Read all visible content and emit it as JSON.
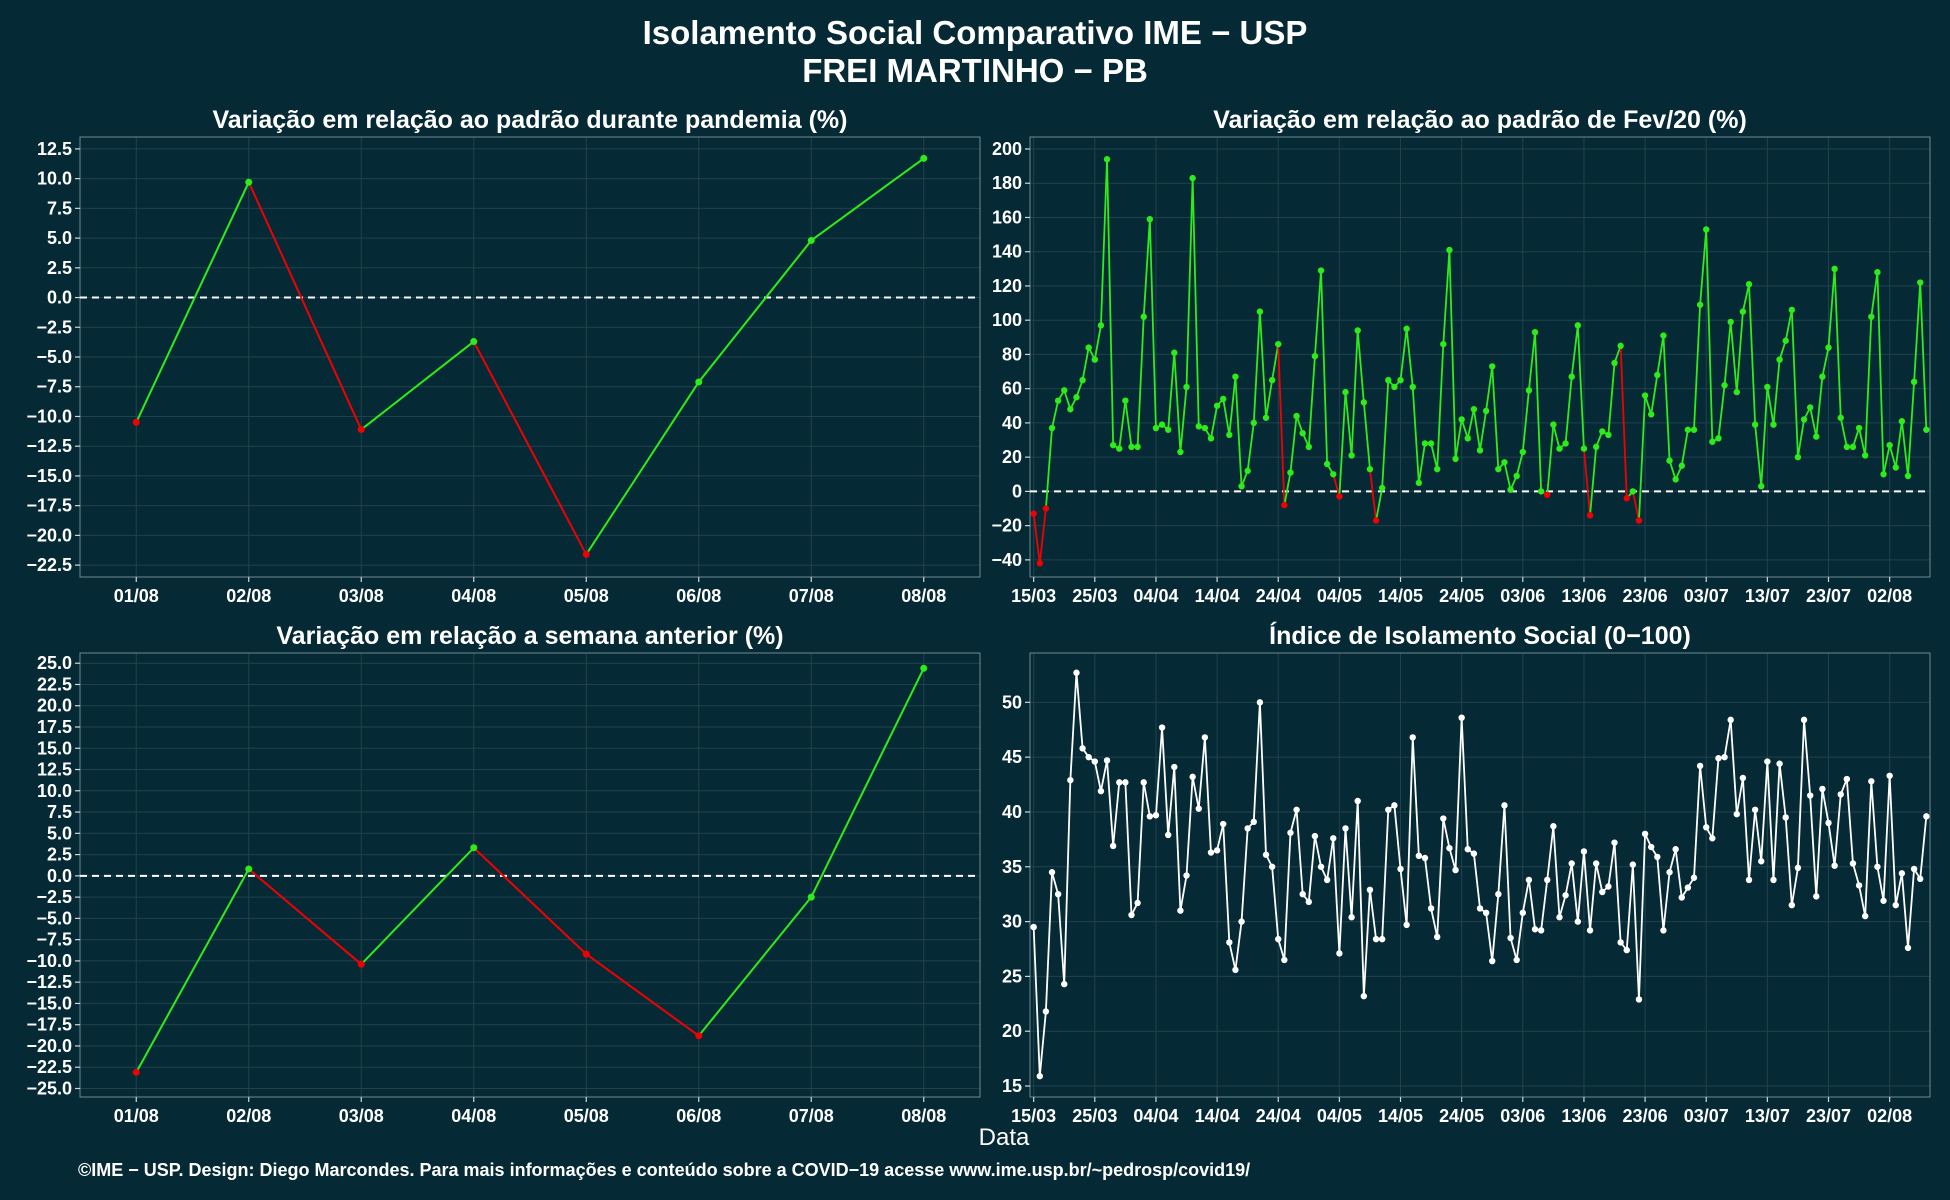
{
  "title": "Isolamento Social Comparativo IME − USP",
  "subtitle": "FREI MARTINHO − PB",
  "xlabel": "Data",
  "caption": "©IME − USP. Design: Diego Marcondes. Para mais informações e conteúdo sobre a COVID−19 acesse www.ime.usp.br/~pedrosp/covid19/",
  "colors": {
    "background": "#062a35",
    "grid": "#21424c",
    "up": "#2eeb1a",
    "down": "#f00000",
    "index": "#ffffff",
    "text": "#ffffff"
  },
  "chart_data": [
    {
      "id": "p1",
      "type": "line",
      "title": "Variação em relação ao padrão durante pandemia (%)",
      "x_kind": "category",
      "categories": [
        "01/08",
        "02/08",
        "03/08",
        "04/08",
        "05/08",
        "06/08",
        "07/08",
        "08/08"
      ],
      "values": [
        -10.5,
        9.7,
        -11.1,
        -3.7,
        -21.6,
        -7.1,
        4.8,
        11.7
      ],
      "ylim": [
        -23.5,
        13.5
      ],
      "yticks": [
        12.5,
        10.0,
        7.5,
        5.0,
        2.5,
        0.0,
        -2.5,
        -5.0,
        -7.5,
        -10.0,
        -12.5,
        -15.0,
        -17.5,
        -20.0,
        -22.5
      ],
      "reference_line": 0,
      "color_rule": "green when rising, red when falling"
    },
    {
      "id": "p2",
      "type": "line",
      "title": "Variação em relação ao padrão de Fev/20 (%)",
      "x_kind": "date",
      "x_start": "15/03",
      "xticks": [
        "15/03",
        "25/03",
        "04/04",
        "14/04",
        "24/04",
        "04/05",
        "14/05",
        "24/05",
        "03/06",
        "13/06",
        "23/06",
        "03/07",
        "13/07",
        "23/07",
        "02/08"
      ],
      "values": [
        -13,
        -42,
        -10,
        37,
        53,
        59,
        48,
        55,
        65,
        84,
        77,
        97,
        194,
        27,
        25,
        53,
        26,
        26,
        102,
        159,
        37,
        39,
        36,
        81,
        23,
        61,
        183,
        38,
        37,
        31,
        50,
        54,
        33,
        67,
        3,
        12,
        40,
        105,
        43,
        65,
        86,
        -8,
        11,
        44,
        34,
        26,
        79,
        129,
        16,
        10,
        -3,
        58,
        21,
        94,
        52,
        13,
        -17,
        2,
        65,
        61,
        65,
        95,
        61,
        5,
        28,
        28,
        13,
        86,
        141,
        19,
        42,
        31,
        48,
        24,
        47,
        73,
        13,
        17,
        1,
        9,
        23,
        59,
        93,
        0,
        -2,
        39,
        25,
        28,
        67,
        97,
        25,
        -14,
        26,
        35,
        33,
        75,
        85,
        -4,
        0,
        -17,
        56,
        45,
        68,
        91,
        18,
        7,
        15,
        36,
        36,
        109,
        153,
        29,
        31,
        62,
        99,
        58,
        105,
        121,
        39,
        3,
        61,
        39,
        77,
        88,
        106,
        20,
        42,
        49,
        32,
        67,
        84,
        130,
        43,
        26,
        26,
        37,
        21,
        102,
        128,
        10,
        27,
        14,
        41,
        9,
        64,
        122,
        36
      ],
      "ylim": [
        -50,
        207
      ],
      "yticks": [
        200,
        180,
        160,
        140,
        120,
        100,
        80,
        60,
        40,
        20,
        0,
        -20,
        -40
      ],
      "reference_line": 0,
      "color_rule": "green when value >= 0, red when value < 0"
    },
    {
      "id": "p3",
      "type": "line",
      "title": "Variação em relação a semana anterior (%)",
      "x_kind": "category",
      "categories": [
        "01/08",
        "02/08",
        "03/08",
        "04/08",
        "05/08",
        "06/08",
        "07/08",
        "08/08"
      ],
      "values": [
        -23.1,
        0.8,
        -10.4,
        3.3,
        -9.2,
        -18.8,
        -2.5,
        24.4
      ],
      "ylim": [
        -26,
        26.2
      ],
      "yticks": [
        25.0,
        22.5,
        20.0,
        17.5,
        15.0,
        12.5,
        10.0,
        7.5,
        5.0,
        2.5,
        0.0,
        -2.5,
        -5.0,
        -7.5,
        -10.0,
        -12.5,
        -15.0,
        -17.5,
        -20.0,
        -22.5,
        -25.0
      ],
      "reference_line": 0,
      "color_rule": "green when rising, red when falling"
    },
    {
      "id": "p4",
      "type": "line",
      "title": "Índice de Isolamento Social (0−100)",
      "x_kind": "date",
      "x_start": "15/03",
      "xticks": [
        "15/03",
        "25/03",
        "04/04",
        "14/04",
        "24/04",
        "04/05",
        "14/05",
        "24/05",
        "03/06",
        "13/06",
        "23/06",
        "03/07",
        "13/07",
        "23/07",
        "02/08"
      ],
      "values": [
        29.5,
        15.9,
        21.8,
        34.5,
        32.5,
        24.3,
        42.9,
        52.7,
        45.8,
        45.0,
        44.6,
        41.9,
        44.7,
        36.9,
        42.7,
        42.7,
        30.6,
        31.7,
        42.7,
        39.6,
        39.7,
        47.7,
        37.9,
        44.1,
        31.0,
        34.2,
        43.2,
        40.3,
        46.8,
        36.3,
        36.5,
        38.9,
        28.1,
        25.6,
        30.0,
        38.5,
        39.1,
        50.0,
        36.1,
        35.0,
        28.4,
        26.5,
        38.1,
        40.2,
        32.5,
        31.8,
        37.8,
        35.0,
        33.8,
        37.6,
        27.1,
        38.5,
        30.4,
        41.0,
        23.2,
        32.9,
        28.4,
        28.4,
        40.2,
        40.6,
        34.8,
        29.7,
        46.8,
        36.0,
        35.8,
        31.2,
        28.6,
        39.4,
        36.7,
        34.7,
        48.6,
        36.6,
        36.2,
        31.2,
        30.8,
        26.4,
        32.5,
        40.6,
        28.5,
        26.5,
        30.8,
        33.8,
        29.3,
        29.2,
        33.8,
        38.7,
        30.4,
        32.4,
        35.3,
        30.0,
        36.4,
        29.2,
        35.3,
        32.7,
        33.2,
        37.2,
        28.1,
        27.4,
        35.2,
        22.9,
        38.0,
        36.8,
        35.9,
        29.2,
        34.5,
        36.6,
        32.2,
        33.1,
        34.0,
        44.2,
        38.6,
        37.6,
        44.9,
        45.0,
        48.4,
        39.8,
        43.1,
        33.8,
        40.2,
        35.5,
        44.6,
        33.8,
        44.4,
        39.5,
        31.5,
        34.9,
        48.4,
        41.5,
        32.3,
        42.1,
        39.0,
        35.1,
        41.6,
        43.0,
        35.3,
        33.3,
        30.5,
        42.8,
        35.0,
        31.9,
        43.3,
        31.5,
        34.4,
        27.6,
        34.8,
        33.9,
        39.6
      ],
      "ylim": [
        14,
        54.5
      ],
      "yticks": [
        50,
        45,
        40,
        35,
        30,
        25,
        20,
        15
      ]
    }
  ]
}
